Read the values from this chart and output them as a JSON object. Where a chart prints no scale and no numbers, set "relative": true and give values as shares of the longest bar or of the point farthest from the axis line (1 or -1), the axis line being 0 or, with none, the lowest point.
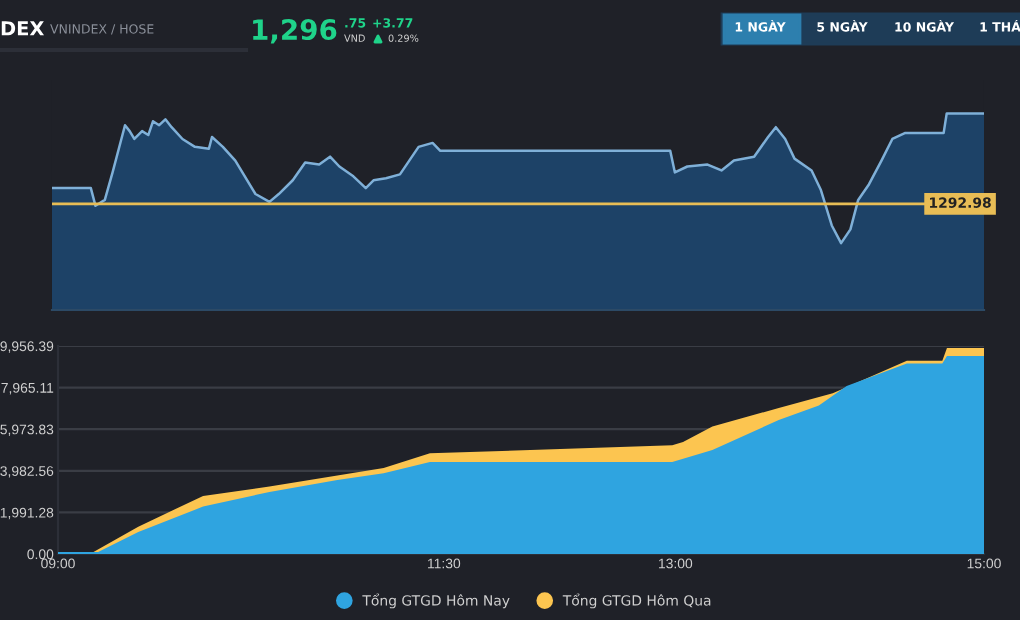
{
  "chart_data": [
    {
      "type": "other",
      "title": "DEX",
      "subtitle": "VNINDEX / HOSE",
      "annotations": [
        "1,296",
        ".75",
        "VND",
        "+3.77",
        "0.29%",
        "1 NGÀY",
        "5 NGÀY",
        "10 NGÀY",
        "1 THÁ"
      ]
    },
    {
      "type": "area",
      "relative": true,
      "tick_labels": false,
      "xlim": [
        9,
        15
      ],
      "annotations": [
        {
          "text": "1292.98",
          "x": 15,
          "y": 0.54
        }
      ],
      "x": [
        9.0,
        9.25,
        9.28,
        9.34,
        9.39,
        9.47,
        9.5,
        9.53,
        9.58,
        9.62,
        9.65,
        9.69,
        9.73,
        9.77,
        9.84,
        9.92,
        10.01,
        10.03,
        10.1,
        10.18,
        10.31,
        10.4,
        10.46,
        10.55,
        10.63,
        10.72,
        10.79,
        10.85,
        10.94,
        11.02,
        11.07,
        11.15,
        11.24,
        11.3,
        11.36,
        11.45,
        11.5,
        12.98,
        13.01,
        13.09,
        13.22,
        13.31,
        13.39,
        13.52,
        13.61,
        13.66,
        13.72,
        13.78,
        13.89,
        13.95,
        14.02,
        14.08,
        14.14,
        14.19,
        14.26,
        14.34,
        14.41,
        14.49,
        14.74,
        14.76,
        15.0
      ],
      "series": [
        {
          "color": "#7fb0d8",
          "values": [
            0.62,
            0.62,
            0.53,
            0.56,
            0.7,
            0.94,
            0.91,
            0.87,
            0.91,
            0.89,
            0.96,
            0.94,
            0.97,
            0.93,
            0.87,
            0.83,
            0.82,
            0.88,
            0.83,
            0.76,
            0.59,
            0.55,
            0.59,
            0.66,
            0.75,
            0.74,
            0.78,
            0.73,
            0.68,
            0.62,
            0.66,
            0.67,
            0.69,
            0.76,
            0.83,
            0.85,
            0.81,
            0.81,
            0.7,
            0.73,
            0.74,
            0.71,
            0.76,
            0.78,
            0.88,
            0.93,
            0.87,
            0.77,
            0.71,
            0.61,
            0.43,
            0.34,
            0.41,
            0.56,
            0.64,
            0.76,
            0.87,
            0.9,
            0.9,
            1.0,
            1.0
          ]
        }
      ],
      "ref_lines": [
        {
          "axis": "y",
          "value": 0.54,
          "color": "#e8bd55"
        }
      ]
    },
    {
      "type": "area",
      "xlim": [
        9,
        15
      ],
      "ylim": [
        0,
        9956.39
      ],
      "grid": "y",
      "legend": "bottom",
      "xticks": [
        {
          "value": 9,
          "label": "09:00"
        },
        {
          "value": 11.5,
          "label": "11:30"
        },
        {
          "value": 13,
          "label": "13:00"
        },
        {
          "value": 15,
          "label": "15:00"
        }
      ],
      "yticks": [
        {
          "value": 0,
          "label": "0.00"
        },
        {
          "value": 1991.28,
          "label": "1,991.28"
        },
        {
          "value": 3982.56,
          "label": "3,982.56"
        },
        {
          "value": 5973.83,
          "label": "5,973.83"
        },
        {
          "value": 7965.11,
          "label": "7,965.11"
        },
        {
          "value": 9956.39,
          "label": "9,956.39"
        }
      ],
      "series": [
        {
          "name": "Tổng GTGD Hôm Nay",
          "color": "#2fa4e0",
          "x": [
            9.0,
            9.23,
            9.26,
            9.52,
            9.94,
            10.37,
            10.81,
            11.11,
            11.41,
            12.98,
            13.24,
            13.67,
            13.93,
            14.11,
            14.5,
            14.73,
            14.76,
            15.0
          ],
          "values": [
            100,
            100,
            100,
            1050,
            2270,
            2970,
            3540,
            3860,
            4400,
            4400,
            4980,
            6410,
            7110,
            8040,
            9120,
            9120,
            9480,
            9480
          ]
        },
        {
          "name": "Tổng GTGD Hôm Qua",
          "color": "#fcc550",
          "x": [
            9.0,
            9.23,
            9.52,
            9.94,
            10.37,
            10.81,
            11.11,
            11.41,
            12.98,
            13.05,
            13.24,
            13.67,
            14.02,
            14.5,
            14.73,
            14.76,
            15.0
          ],
          "values": [
            100,
            100,
            1310,
            2780,
            3230,
            3760,
            4120,
            4820,
            5200,
            5360,
            6100,
            6990,
            7690,
            9250,
            9250,
            9860,
            9860
          ]
        }
      ]
    }
  ]
}
